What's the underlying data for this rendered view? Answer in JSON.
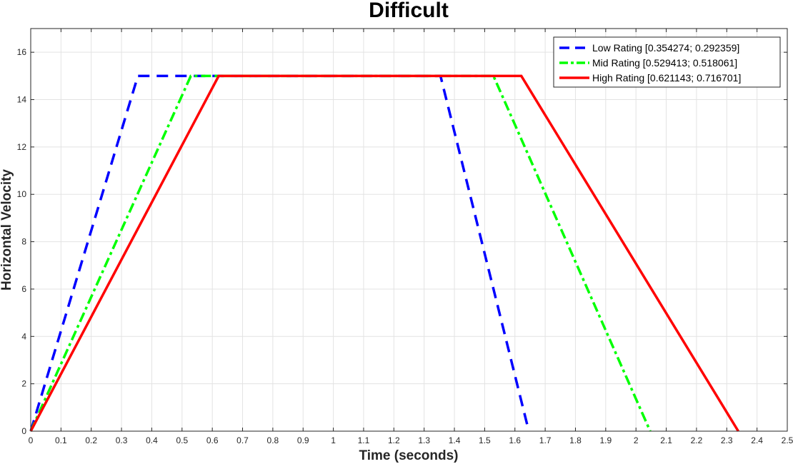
{
  "chart_data": {
    "type": "line",
    "title": "Difficult",
    "xlabel": "Time (seconds)",
    "ylabel": "Horizontal Velocity",
    "xlim": [
      0,
      2.5
    ],
    "ylim": [
      0,
      17
    ],
    "grid": true,
    "legend_position": "top-right",
    "x_ticks": [
      "0",
      "0.1",
      "0.2",
      "0.3",
      "0.4",
      "0.5",
      "0.6",
      "0.7",
      "0.8",
      "0.9",
      "1",
      "1.1",
      "1.2",
      "1.3",
      "1.4",
      "1.5",
      "1.6",
      "1.7",
      "1.8",
      "1.9",
      "2",
      "2.1",
      "2.2",
      "2.3",
      "2.4",
      "2.5"
    ],
    "y_ticks": [
      "0",
      "2",
      "4",
      "6",
      "8",
      "10",
      "12",
      "14",
      "16"
    ],
    "series": [
      {
        "name": "Low Rating [0.354274; 0.292359]",
        "color": "#0000ff",
        "style": "dashed",
        "x": [
          0,
          0.354,
          1.354,
          1.646
        ],
        "y": [
          0,
          15,
          15,
          0
        ]
      },
      {
        "name": "Mid Rating [0.529413; 0.518061]",
        "color": "#00ff00",
        "style": "dashdot",
        "x": [
          0,
          0.529,
          1.529,
          2.047
        ],
        "y": [
          0,
          15,
          15,
          0
        ]
      },
      {
        "name": "High Rating [0.621143; 0.716701]",
        "color": "#ff0000",
        "style": "solid",
        "x": [
          0,
          0.621,
          1.621,
          2.338
        ],
        "y": [
          0,
          15,
          15,
          0
        ]
      }
    ]
  }
}
